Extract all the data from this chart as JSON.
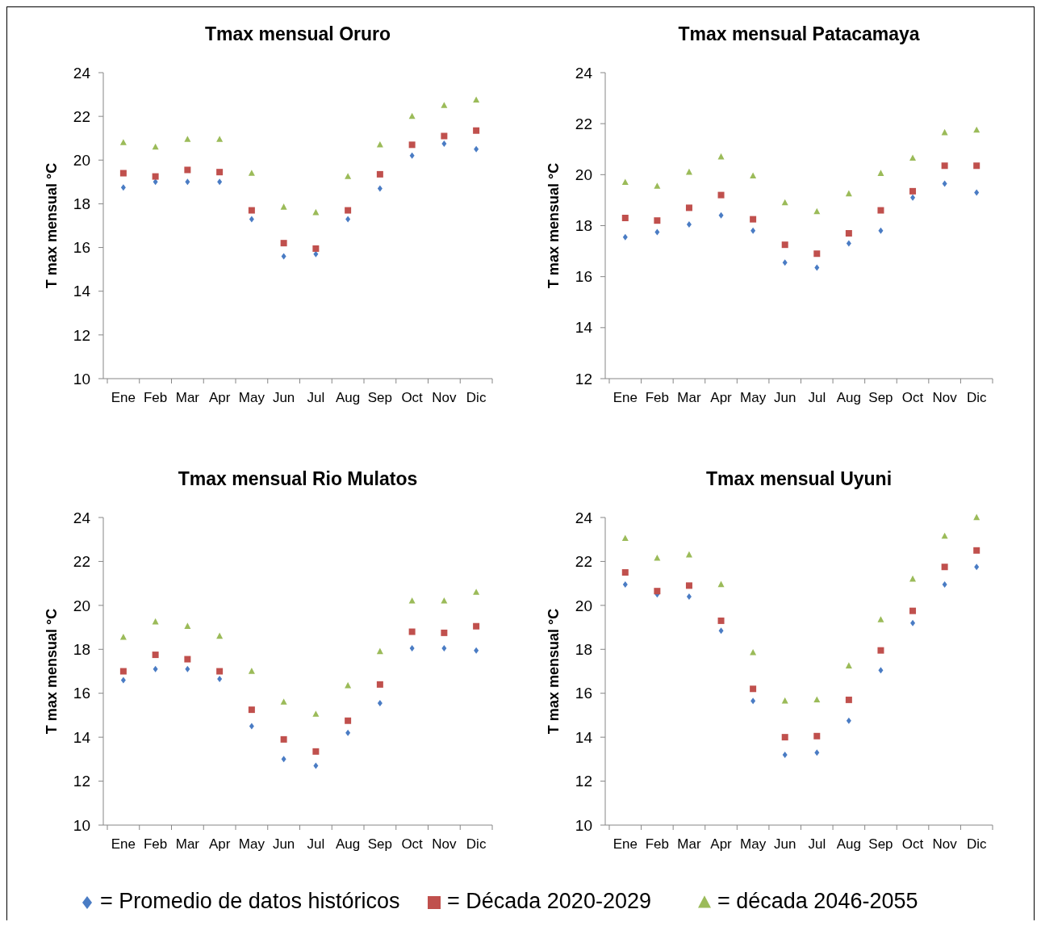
{
  "chart_data": [
    {
      "type": "scatter",
      "title": "Tmax mensual Oruro",
      "ylabel": "T max  mensual °C",
      "categories": [
        "Ene",
        "Feb",
        "Mar",
        "Apr",
        "May",
        "Jun",
        "Jul",
        "Aug",
        "Sep",
        "Oct",
        "Nov",
        "Dic"
      ],
      "ylim": [
        10,
        24
      ],
      "yticks": [
        10,
        12,
        14,
        16,
        18,
        20,
        22,
        24
      ],
      "legend": "bottom",
      "series": [
        {
          "name": "= Promedio de datos históricos",
          "color": "#4a7cc4",
          "marker": "diamond",
          "values": [
            18.75,
            19.0,
            19.0,
            19.0,
            17.3,
            15.6,
            15.7,
            17.3,
            18.7,
            20.2,
            20.75,
            20.5
          ]
        },
        {
          "name": "= Década 2020-2029",
          "color": "#c0504d",
          "marker": "square",
          "values": [
            19.4,
            19.25,
            19.55,
            19.45,
            17.7,
            16.2,
            15.95,
            17.7,
            19.35,
            20.7,
            21.1,
            21.35
          ]
        },
        {
          "name": "= década 2046-2055",
          "color": "#9bbb59",
          "marker": "triangle",
          "values": [
            20.8,
            20.6,
            20.95,
            20.95,
            19.4,
            17.85,
            17.6,
            19.25,
            20.7,
            22.0,
            22.5,
            22.75
          ]
        }
      ]
    },
    {
      "type": "scatter",
      "title": "Tmax mensual Patacamaya",
      "ylabel": "T max mensual °C",
      "categories": [
        "Ene",
        "Feb",
        "Mar",
        "Apr",
        "May",
        "Jun",
        "Jul",
        "Aug",
        "Sep",
        "Oct",
        "Nov",
        "Dic"
      ],
      "ylim": [
        12,
        24
      ],
      "yticks": [
        12,
        14,
        16,
        18,
        20,
        22,
        24
      ],
      "series": [
        {
          "color": "#4a7cc4",
          "marker": "diamond",
          "values": [
            17.55,
            17.75,
            18.05,
            18.4,
            17.8,
            16.55,
            16.35,
            17.3,
            17.8,
            19.1,
            19.65,
            19.3
          ]
        },
        {
          "color": "#c0504d",
          "marker": "square",
          "values": [
            18.3,
            18.2,
            18.7,
            19.2,
            18.25,
            17.25,
            16.9,
            17.7,
            18.6,
            19.35,
            20.35,
            20.35
          ]
        },
        {
          "color": "#9bbb59",
          "marker": "triangle",
          "values": [
            19.7,
            19.55,
            20.1,
            20.7,
            19.95,
            18.9,
            18.55,
            19.25,
            20.05,
            20.65,
            21.65,
            21.75
          ]
        }
      ]
    },
    {
      "type": "scatter",
      "title": "Tmax mensual Rio Mulatos",
      "ylabel": "T max  mensual °C",
      "categories": [
        "Ene",
        "Feb",
        "Mar",
        "Apr",
        "May",
        "Jun",
        "Jul",
        "Aug",
        "Sep",
        "Oct",
        "Nov",
        "Dic"
      ],
      "ylim": [
        10,
        24
      ],
      "yticks": [
        10,
        12,
        14,
        16,
        18,
        20,
        22,
        24
      ],
      "series": [
        {
          "color": "#4a7cc4",
          "marker": "diamond",
          "values": [
            16.6,
            17.1,
            17.1,
            16.65,
            14.5,
            13.0,
            12.7,
            14.2,
            15.55,
            18.05,
            18.05,
            17.95
          ]
        },
        {
          "color": "#c0504d",
          "marker": "square",
          "values": [
            17.0,
            17.75,
            17.55,
            17.0,
            15.25,
            13.9,
            13.35,
            14.75,
            16.4,
            18.8,
            18.75,
            19.05
          ]
        },
        {
          "color": "#9bbb59",
          "marker": "triangle",
          "values": [
            18.55,
            19.25,
            19.05,
            18.6,
            17.0,
            15.6,
            15.05,
            16.35,
            17.9,
            20.2,
            20.2,
            20.6
          ]
        }
      ]
    },
    {
      "type": "scatter",
      "title": "Tmax mensual Uyuni",
      "ylabel": "T max  mensual °C",
      "categories": [
        "Ene",
        "Feb",
        "Mar",
        "Apr",
        "May",
        "Jun",
        "Jul",
        "Aug",
        "Sep",
        "Oct",
        "Nov",
        "Dic"
      ],
      "ylim": [
        10,
        24
      ],
      "yticks": [
        10,
        12,
        14,
        16,
        18,
        20,
        22,
        24
      ],
      "series": [
        {
          "color": "#4a7cc4",
          "marker": "diamond",
          "values": [
            20.95,
            20.5,
            20.4,
            18.85,
            15.65,
            13.2,
            13.3,
            14.75,
            17.05,
            19.2,
            20.95,
            21.75
          ]
        },
        {
          "color": "#c0504d",
          "marker": "square",
          "values": [
            21.5,
            20.65,
            20.9,
            19.3,
            16.2,
            14.0,
            14.05,
            15.7,
            17.95,
            19.75,
            21.75,
            22.5
          ]
        },
        {
          "color": "#9bbb59",
          "marker": "triangle",
          "values": [
            23.05,
            22.15,
            22.3,
            20.95,
            17.85,
            15.65,
            15.7,
            17.25,
            19.35,
            21.2,
            23.15,
            24.0
          ]
        }
      ]
    }
  ]
}
